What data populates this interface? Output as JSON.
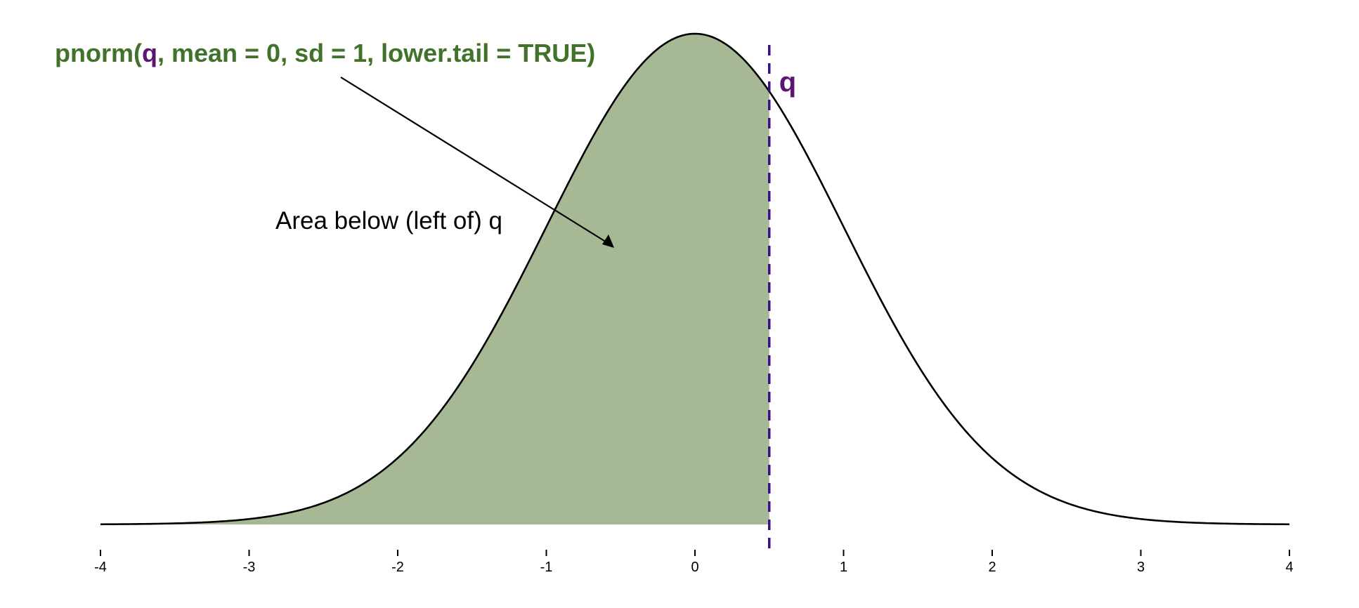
{
  "chart_data": {
    "type": "area",
    "distribution": "normal",
    "mean": 0,
    "sd": 1,
    "q": 0.5,
    "xlim": [
      -4,
      4
    ],
    "ticks": [
      "-4",
      "-3",
      "-2",
      "-1",
      "0",
      "1",
      "2",
      "3",
      "4"
    ],
    "title_parts": [
      {
        "text": "pnorm(",
        "role": "fn"
      },
      {
        "text": "q",
        "role": "q"
      },
      {
        "text": ", mean = 0, sd = 1, lower.tail = TRUE)",
        "role": "fn"
      }
    ],
    "q_label": "q",
    "annotation": "Area below (left of) q",
    "colors": {
      "fill": "#a7b994",
      "curve": "#000000",
      "q_line": "#3b0f8c",
      "title": "#41722a",
      "q_text": "#5a1670"
    }
  }
}
